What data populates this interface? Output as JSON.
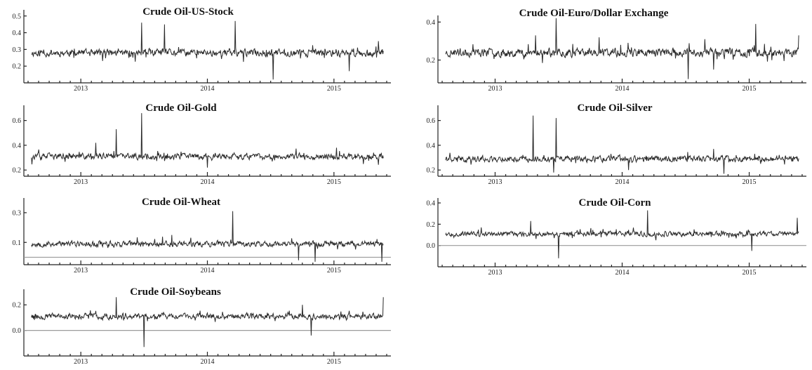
{
  "chart_data": [
    {
      "id": "p1",
      "type": "line",
      "title": "Crude Oil-US-Stock",
      "xlim": [
        2012.55,
        2015.45
      ],
      "ylim": [
        0.1,
        0.52
      ],
      "yticks": [
        0.2,
        0.3,
        0.4,
        0.5
      ],
      "ytick_labels": [
        "0.2",
        "0.3",
        "0.4",
        "0.5"
      ],
      "xticks": [
        2013,
        2014,
        2015
      ],
      "xtick_labels": [
        "2013",
        "2014",
        "2015"
      ],
      "baseline": 0.28,
      "noise": 0.018,
      "refline": null,
      "seed": 11,
      "spikes": [
        [
          2013.48,
          0.46
        ],
        [
          2013.66,
          0.45
        ],
        [
          2014.22,
          0.47
        ],
        [
          2014.52,
          0.12
        ],
        [
          2015.12,
          0.17
        ],
        [
          2015.35,
          0.35
        ]
      ],
      "grid": false,
      "legend": "none"
    },
    {
      "id": "p2",
      "type": "line",
      "title": "Crude Oil-Euro/Dollar Exchange",
      "xlim": [
        2012.55,
        2015.45
      ],
      "ylim": [
        0.08,
        0.42
      ],
      "yticks": [
        0.2,
        0.4
      ],
      "ytick_labels": [
        "0.2",
        "0.4"
      ],
      "xticks": [
        2013,
        2014,
        2015
      ],
      "xtick_labels": [
        "2013",
        "2014",
        "2015"
      ],
      "baseline": 0.24,
      "noise": 0.018,
      "refline": null,
      "seed": 23,
      "spikes": [
        [
          2013.48,
          0.42
        ],
        [
          2013.32,
          0.33
        ],
        [
          2013.82,
          0.32
        ],
        [
          2014.65,
          0.31
        ],
        [
          2014.52,
          0.1
        ],
        [
          2015.05,
          0.39
        ],
        [
          2014.72,
          0.15
        ],
        [
          2015.4,
          0.33
        ]
      ],
      "grid": false,
      "legend": "none"
    },
    {
      "id": "p3",
      "type": "line",
      "title": "Crude Oil-Gold",
      "xlim": [
        2012.55,
        2015.45
      ],
      "ylim": [
        0.15,
        0.7
      ],
      "yticks": [
        0.2,
        0.4,
        0.6
      ],
      "ytick_labels": [
        "0.2",
        "0.4",
        "0.6"
      ],
      "xticks": [
        2013,
        2014,
        2015
      ],
      "xtick_labels": [
        "2013",
        "2014",
        "2015"
      ],
      "baseline": 0.31,
      "noise": 0.02,
      "refline": null,
      "seed": 37,
      "spikes": [
        [
          2013.28,
          0.53
        ],
        [
          2013.48,
          0.66
        ],
        [
          2013.12,
          0.42
        ],
        [
          2014.0,
          0.22
        ],
        [
          2015.02,
          0.38
        ]
      ],
      "grid": false,
      "legend": "none"
    },
    {
      "id": "p4",
      "type": "line",
      "title": "Crude Oil-Silver",
      "xlim": [
        2012.55,
        2015.45
      ],
      "ylim": [
        0.15,
        0.7
      ],
      "yticks": [
        0.2,
        0.4,
        0.6
      ],
      "ytick_labels": [
        "0.2",
        "0.4",
        "0.6"
      ],
      "xticks": [
        2013,
        2014,
        2015
      ],
      "xtick_labels": [
        "2013",
        "2014",
        "2015"
      ],
      "baseline": 0.29,
      "noise": 0.02,
      "refline": null,
      "seed": 41,
      "spikes": [
        [
          2013.3,
          0.64
        ],
        [
          2013.48,
          0.62
        ],
        [
          2013.46,
          0.18
        ],
        [
          2014.05,
          0.2
        ],
        [
          2014.72,
          0.37
        ],
        [
          2014.8,
          0.17
        ]
      ],
      "grid": false,
      "legend": "none"
    },
    {
      "id": "p5",
      "type": "line",
      "title": "Crude Oil-Wheat",
      "xlim": [
        2012.55,
        2015.45
      ],
      "ylim": [
        -0.05,
        0.38
      ],
      "yticks": [
        0.1,
        0.3
      ],
      "ytick_labels": [
        "0.1",
        "0.3"
      ],
      "xticks": [
        2013,
        2014,
        2015
      ],
      "xtick_labels": [
        "2013",
        "2014",
        "2015"
      ],
      "baseline": 0.09,
      "noise": 0.016,
      "refline": 0.0,
      "seed": 53,
      "spikes": [
        [
          2014.2,
          0.31
        ],
        [
          2014.72,
          -0.02
        ],
        [
          2014.85,
          -0.03
        ],
        [
          2015.38,
          -0.03
        ],
        [
          2013.72,
          0.15
        ]
      ],
      "grid": false,
      "legend": "none"
    },
    {
      "id": "p6",
      "type": "line",
      "title": "Crude Oil-Corn",
      "xlim": [
        2012.55,
        2015.45
      ],
      "ylim": [
        -0.2,
        0.42
      ],
      "yticks": [
        0.0,
        0.2,
        0.4
      ],
      "ytick_labels": [
        "0.0",
        "0.2",
        "0.4"
      ],
      "xticks": [
        2013,
        2014,
        2015
      ],
      "xtick_labels": [
        "2013",
        "2014",
        "2015"
      ],
      "baseline": 0.11,
      "noise": 0.018,
      "refline": 0.0,
      "seed": 67,
      "spikes": [
        [
          2013.5,
          -0.12
        ],
        [
          2014.2,
          0.33
        ],
        [
          2013.28,
          0.23
        ],
        [
          2015.02,
          -0.05
        ],
        [
          2015.38,
          0.26
        ]
      ],
      "grid": false,
      "legend": "none"
    },
    {
      "id": "p7",
      "type": "line",
      "title": "Crude Oil-Soybeans",
      "xlim": [
        2012.55,
        2015.45
      ],
      "ylim": [
        -0.2,
        0.3
      ],
      "yticks": [
        0.0,
        0.2
      ],
      "ytick_labels": [
        "0.0",
        "0.2"
      ],
      "xticks": [
        2013,
        2014,
        2015
      ],
      "xtick_labels": [
        "2013",
        "2014",
        "2015"
      ],
      "baseline": 0.11,
      "noise": 0.018,
      "refline": 0.0,
      "seed": 79,
      "spikes": [
        [
          2013.5,
          -0.13
        ],
        [
          2013.28,
          0.26
        ],
        [
          2014.82,
          -0.04
        ],
        [
          2015.42,
          0.26
        ],
        [
          2014.75,
          0.2
        ]
      ],
      "grid": false,
      "legend": "none"
    }
  ]
}
